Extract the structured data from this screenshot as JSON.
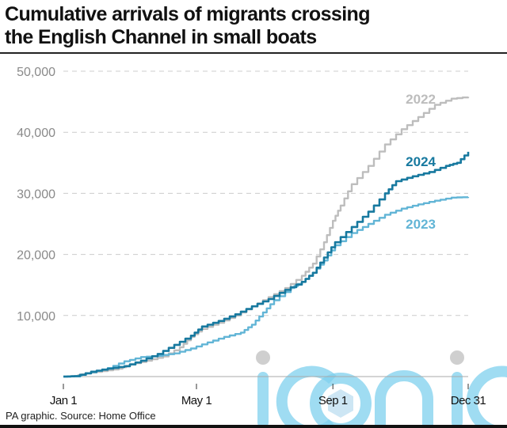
{
  "title_line1": "Cumulative arrivals of migrants crossing",
  "title_line2": "the English Channel in small boats",
  "source": "PA graphic. Source: Home Office",
  "watermark": "iconic",
  "colors": {
    "s2022": "#bdbdbd",
    "s2023": "#62b5d6",
    "s2024": "#17799f",
    "grid": "#cccccc",
    "tick_label": "#8a8a8a"
  },
  "chart_data": {
    "type": "line",
    "title": "Cumulative arrivals of migrants crossing the English Channel in small boats",
    "xlabel": "",
    "ylabel": "",
    "x_unit": "day of year",
    "xlim": [
      0,
      365
    ],
    "ylim": [
      0,
      50000
    ],
    "grid": true,
    "x_ticks": [
      {
        "label": "Jan 1",
        "day": 0
      },
      {
        "label": "May 1",
        "day": 120
      },
      {
        "label": "Sep 1",
        "day": 243
      },
      {
        "label": "Dec 31",
        "day": 365
      }
    ],
    "y_ticks": [
      {
        "label": "10,000",
        "value": 10000
      },
      {
        "label": "20,000",
        "value": 20000
      },
      {
        "label": "30,000",
        "value": 30000
      },
      {
        "label": "40,000",
        "value": 40000
      },
      {
        "label": "50,000",
        "value": 50000
      }
    ],
    "series": [
      {
        "name": "2022",
        "label": "2022",
        "color": "#bdbdbd",
        "points": [
          [
            0,
            0
          ],
          [
            10,
            100
          ],
          [
            20,
            500
          ],
          [
            35,
            900
          ],
          [
            50,
            1300
          ],
          [
            60,
            2000
          ],
          [
            75,
            2600
          ],
          [
            90,
            3300
          ],
          [
            105,
            4800
          ],
          [
            115,
            6500
          ],
          [
            125,
            7800
          ],
          [
            140,
            8800
          ],
          [
            155,
            10000
          ],
          [
            170,
            11500
          ],
          [
            185,
            13000
          ],
          [
            200,
            14500
          ],
          [
            215,
            16500
          ],
          [
            225,
            18500
          ],
          [
            235,
            22000
          ],
          [
            243,
            25500
          ],
          [
            250,
            28000
          ],
          [
            260,
            31500
          ],
          [
            275,
            34500
          ],
          [
            290,
            38000
          ],
          [
            305,
            40500
          ],
          [
            320,
            42500
          ],
          [
            335,
            44500
          ],
          [
            350,
            45500
          ],
          [
            365,
            45800
          ]
        ]
      },
      {
        "name": "2023",
        "label": "2023",
        "color": "#62b5d6",
        "points": [
          [
            0,
            0
          ],
          [
            12,
            100
          ],
          [
            25,
            700
          ],
          [
            40,
            1400
          ],
          [
            55,
            2500
          ],
          [
            70,
            3200
          ],
          [
            85,
            3400
          ],
          [
            100,
            3800
          ],
          [
            115,
            4600
          ],
          [
            130,
            5600
          ],
          [
            145,
            6500
          ],
          [
            160,
            7200
          ],
          [
            170,
            8500
          ],
          [
            180,
            10500
          ],
          [
            190,
            12500
          ],
          [
            205,
            14500
          ],
          [
            215,
            15500
          ],
          [
            225,
            17000
          ],
          [
            235,
            19000
          ],
          [
            245,
            21500
          ],
          [
            260,
            23500
          ],
          [
            275,
            25000
          ],
          [
            290,
            26500
          ],
          [
            305,
            27500
          ],
          [
            320,
            28200
          ],
          [
            335,
            28800
          ],
          [
            350,
            29300
          ],
          [
            365,
            29400
          ]
        ]
      },
      {
        "name": "2024",
        "label": "2024",
        "color": "#17799f",
        "points": [
          [
            0,
            0
          ],
          [
            10,
            50
          ],
          [
            25,
            800
          ],
          [
            40,
            1300
          ],
          [
            55,
            1700
          ],
          [
            70,
            2600
          ],
          [
            85,
            3700
          ],
          [
            100,
            5200
          ],
          [
            115,
            6700
          ],
          [
            125,
            8200
          ],
          [
            140,
            9100
          ],
          [
            155,
            10200
          ],
          [
            170,
            11500
          ],
          [
            185,
            12700
          ],
          [
            200,
            14200
          ],
          [
            215,
            15500
          ],
          [
            225,
            17000
          ],
          [
            235,
            19500
          ],
          [
            245,
            22000
          ],
          [
            260,
            24500
          ],
          [
            275,
            27000
          ],
          [
            290,
            30000
          ],
          [
            300,
            32000
          ],
          [
            315,
            32800
          ],
          [
            330,
            33500
          ],
          [
            345,
            34500
          ],
          [
            355,
            35000
          ],
          [
            365,
            36800
          ]
        ]
      }
    ]
  }
}
